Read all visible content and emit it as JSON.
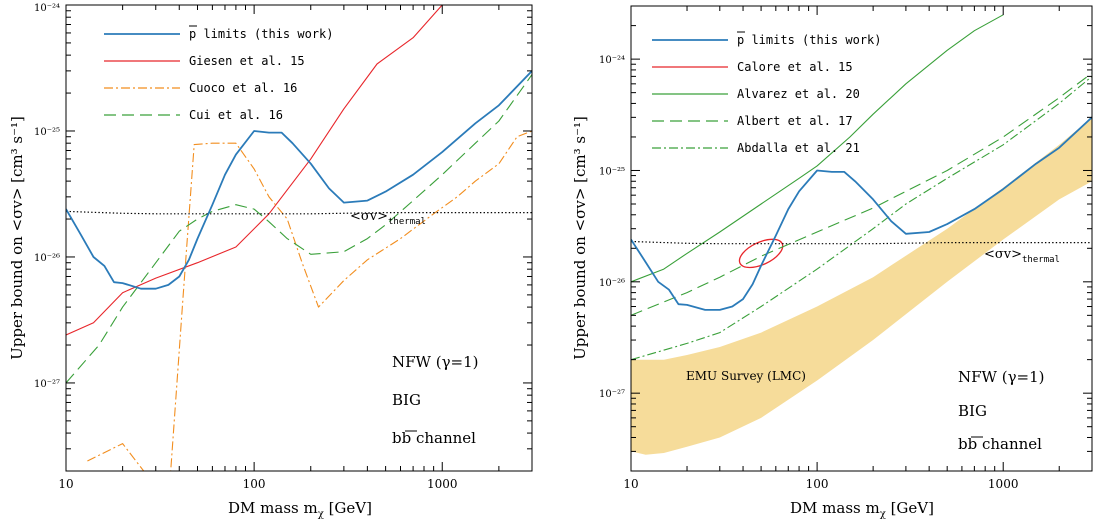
{
  "colors": {
    "this_work": "#2b7bb9",
    "red": "#e8262b",
    "orange": "#f28e1f",
    "green": "#3aa03a",
    "band": "#f6dc9a",
    "thermal": "#000000"
  },
  "panels": [
    {
      "id": "left",
      "xlabel": "DM mass m",
      "xlabel_sub": "χ",
      "xlabel_unit": " [GeV]",
      "ylabel": "Upper bound on <σv> [cm³ s⁻¹]",
      "xticks": [
        "10",
        "100",
        "1000"
      ],
      "yticks": [
        "10⁻²⁴",
        "10⁻²⁵",
        "10⁻²⁶",
        "10⁻²⁷"
      ],
      "annotations": {
        "profile": "NFW (γ=1)",
        "model": "BIG",
        "channel": "bb channel"
      },
      "thermal_label": "<σv>",
      "thermal_sub": "thermal",
      "legend": [
        "p limits (this work)",
        "Giesen et al. 15",
        "Cuoco et al. 16",
        "Cui et al. 16"
      ]
    },
    {
      "id": "right",
      "xlabel": "DM mass m",
      "xlabel_sub": "χ",
      "xlabel_unit": " [GeV]",
      "ylabel": "Upper bound on <σv> [cm³ s⁻¹]",
      "xticks": [
        "10",
        "100",
        "1000"
      ],
      "yticks": [
        "10⁻²⁴",
        "10⁻²⁵",
        "10⁻²⁶",
        "10⁻²⁷"
      ],
      "annotations": {
        "profile": "NFW (γ=1)",
        "model": "BIG",
        "channel": "bb channel",
        "band_label": "EMU Survey (LMC)"
      },
      "thermal_label": "<σv>",
      "thermal_sub": "thermal",
      "legend": [
        "p limits (this work)",
        "Calore et al. 15",
        "Alvarez et al. 20",
        "Albert et al. 17",
        "Abdalla et al. 21"
      ]
    }
  ],
  "chart_data": [
    {
      "type": "line",
      "xlabel": "DM mass mχ [GeV]",
      "ylabel": "Upper bound on <σv> [cm³ s⁻¹]",
      "xscale": "log",
      "yscale": "log",
      "xlim": [
        10,
        3000
      ],
      "ylim": [
        2e-28,
        1e-24
      ],
      "legend_position": "top-left",
      "series": [
        {
          "name": "p limits (this work)",
          "style": "solid",
          "color": "#2b7bb9",
          "x": [
            10,
            12,
            14,
            16,
            18,
            20,
            25,
            30,
            35,
            40,
            45,
            50,
            60,
            70,
            80,
            100,
            120,
            140,
            160,
            200,
            250,
            300,
            400,
            500,
            700,
            1000,
            1500,
            2000,
            3000
          ],
          "y": [
            2.4e-26,
            1.5e-26,
            1e-26,
            8.5e-27,
            6.3e-27,
            6.2e-27,
            5.6e-27,
            5.6e-27,
            6e-27,
            7e-27,
            9.5e-27,
            1.4e-26,
            2.6e-26,
            4.5e-26,
            6.5e-26,
            1e-25,
            9.7e-26,
            9.7e-26,
            8e-26,
            5.5e-26,
            3.5e-26,
            2.7e-26,
            2.8e-26,
            3.3e-26,
            4.5e-26,
            6.8e-26,
            1.15e-25,
            1.6e-25,
            3e-25
          ]
        },
        {
          "name": "Giesen et al. 15",
          "style": "solid",
          "color": "#e8262b",
          "x": [
            10,
            14,
            20,
            30,
            50,
            80,
            120,
            200,
            300,
            450,
            700,
            1000,
            1500
          ],
          "y": [
            2.4e-27,
            3e-27,
            5.2e-27,
            6.8e-27,
            9e-27,
            1.2e-26,
            2.2e-26,
            6e-26,
            1.5e-25,
            3.4e-25,
            5.5e-25,
            1e-24,
            2.2e-24
          ]
        },
        {
          "name": "Cuoco et al. 16",
          "style": "dash-dot",
          "color": "#f28e1f",
          "x": [
            13,
            20,
            30,
            36,
            42,
            48,
            60,
            80,
            100,
            120,
            150,
            180,
            220,
            300,
            400,
            600,
            900,
            1200,
            1500,
            2000,
            2500,
            3000
          ],
          "y": [
            2.4e-28,
            3.3e-28,
            1.5e-28,
            2e-28,
            5e-27,
            7.8e-26,
            8e-26,
            8e-26,
            5e-26,
            3e-26,
            2e-26,
            9e-27,
            4e-27,
            6.5e-27,
            9.5e-27,
            1.4e-26,
            2.2e-26,
            3e-26,
            4e-26,
            5.5e-26,
            9e-26,
            1e-25
          ]
        },
        {
          "name": "Cui et al. 16",
          "style": "dashed",
          "color": "#3aa03a",
          "x": [
            10,
            15,
            20,
            30,
            40,
            50,
            60,
            80,
            100,
            120,
            150,
            200,
            300,
            400,
            500,
            700,
            1000,
            1500,
            2000,
            3000
          ],
          "y": [
            1e-27,
            2e-27,
            4e-27,
            9e-27,
            1.6e-26,
            2e-26,
            2.3e-26,
            2.6e-26,
            2.4e-26,
            1.9e-26,
            1.4e-26,
            1.05e-26,
            1.1e-26,
            1.4e-26,
            1.8e-26,
            2.8e-26,
            4.5e-26,
            8e-26,
            1.2e-25,
            2.8e-25
          ]
        },
        {
          "name": "<σv>thermal",
          "style": "dotted",
          "color": "#000000",
          "x": [
            10,
            20,
            30,
            50,
            100,
            200,
            500,
            1000,
            3000
          ],
          "y": [
            2.3e-26,
            2.22e-26,
            2.2e-26,
            2.2e-26,
            2.2e-26,
            2.2e-26,
            2.25e-26,
            2.25e-26,
            2.25e-26
          ]
        }
      ]
    },
    {
      "type": "line",
      "xlabel": "DM mass mχ [GeV]",
      "ylabel": "Upper bound on <σv> [cm³ s⁻¹]",
      "xscale": "log",
      "yscale": "log",
      "xlim": [
        10,
        3000
      ],
      "ylim": [
        2e-28,
        3e-24
      ],
      "legend_position": "top-left",
      "band": {
        "name": "EMU Survey (LMC)",
        "color": "#f6dc9a",
        "x": [
          10,
          12,
          15,
          20,
          30,
          50,
          100,
          200,
          500,
          1000,
          2000,
          3000
        ],
        "lower": [
          3e-28,
          2.8e-28,
          2.9e-28,
          3.3e-28,
          4e-28,
          6e-28,
          1.3e-27,
          3e-27,
          1e-26,
          2.4e-26,
          5.5e-26,
          8e-26
        ],
        "upper": [
          2e-27,
          2e-27,
          2e-27,
          2.2e-27,
          2.6e-27,
          3.5e-27,
          6e-27,
          1.1e-26,
          3e-26,
          7e-26,
          1.7e-25,
          3e-25
        ]
      },
      "series": [
        {
          "name": "p limits (this work)",
          "style": "solid",
          "color": "#2b7bb9",
          "x": [
            10,
            12,
            14,
            16,
            18,
            20,
            25,
            30,
            35,
            40,
            45,
            50,
            60,
            70,
            80,
            100,
            120,
            140,
            160,
            200,
            250,
            300,
            400,
            500,
            700,
            1000,
            1500,
            2000,
            3000
          ],
          "y": [
            2.4e-26,
            1.5e-26,
            1e-26,
            8.5e-27,
            6.3e-27,
            6.2e-27,
            5.6e-27,
            5.6e-27,
            6e-27,
            7e-27,
            9.5e-27,
            1.4e-26,
            2.6e-26,
            4.5e-26,
            6.5e-26,
            1e-25,
            9.7e-26,
            9.7e-26,
            8e-26,
            5.5e-26,
            3.5e-26,
            2.7e-26,
            2.8e-26,
            3.3e-26,
            4.5e-26,
            6.8e-26,
            1.15e-25,
            1.6e-25,
            3e-25
          ]
        },
        {
          "name": "Calore et al. 15",
          "style": "ellipse",
          "color": "#e8262b",
          "center": [
            50,
            1.8e-26
          ],
          "log_radius_x": 0.125,
          "log_radius_y": 0.125
        },
        {
          "name": "Alvarez et al. 20",
          "style": "solid",
          "color": "#3aa03a",
          "x": [
            10,
            15,
            20,
            30,
            50,
            80,
            100,
            150,
            200,
            300,
            500,
            700,
            1000
          ],
          "y": [
            1e-26,
            1.3e-26,
            1.8e-26,
            2.8e-26,
            5e-26,
            8.5e-26,
            1.1e-25,
            2e-25,
            3.2e-25,
            6e-25,
            1.2e-24,
            1.8e-24,
            2.5e-24
          ]
        },
        {
          "name": "Albert et al. 17",
          "style": "dashed",
          "color": "#3aa03a",
          "x": [
            10,
            20,
            30,
            50,
            100,
            200,
            300,
            500,
            1000,
            2000,
            3000
          ],
          "y": [
            5e-27,
            8e-27,
            1.1e-26,
            1.7e-26,
            2.8e-26,
            4.6e-26,
            6.5e-26,
            1e-25,
            2e-25,
            4.5e-25,
            7.5e-25
          ]
        },
        {
          "name": "Abdalla et al. 21",
          "style": "dash-dot",
          "color": "#3aa03a",
          "x": [
            10,
            20,
            30,
            50,
            100,
            200,
            300,
            500,
            1000,
            2000,
            3000
          ],
          "y": [
            2e-27,
            2.8e-27,
            3.5e-27,
            6e-27,
            1.3e-26,
            3e-26,
            5e-26,
            8.5e-26,
            1.7e-25,
            4e-25,
            7e-25
          ]
        },
        {
          "name": "<σv>thermal",
          "style": "dotted",
          "color": "#000000",
          "x": [
            10,
            20,
            30,
            50,
            100,
            200,
            500,
            1000,
            3000
          ],
          "y": [
            2.3e-26,
            2.22e-26,
            2.2e-26,
            2.2e-26,
            2.2e-26,
            2.2e-26,
            2.25e-26,
            2.25e-26,
            2.25e-26
          ]
        }
      ]
    }
  ]
}
